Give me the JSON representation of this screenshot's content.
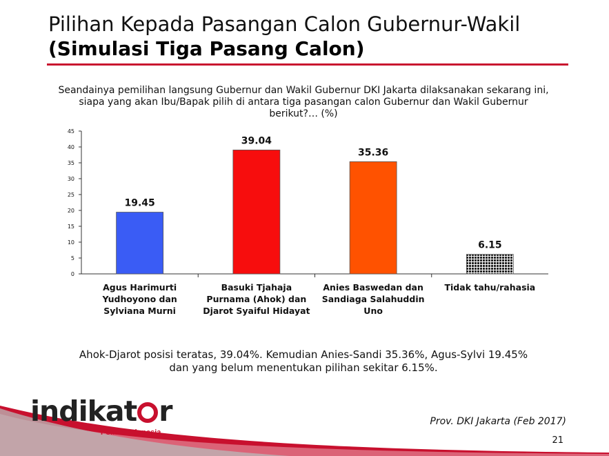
{
  "slide": {
    "title_line1": "Pilihan Kepada Pasangan Calon Gubernur-Wakil",
    "title_line2": "(Simulasi Tiga Pasang Calon)",
    "question": "Seandainya pemilihan langsung Gubernur dan Wakil Gubernur DKI Jakarta dilaksanakan sekarang ini, siapa yang akan Ibu/Bapak pilih di antara tiga pasangan calon Gubernur dan Wakil Gubernur berikut?… (%)",
    "summary_line1": "Ahok-Djarot posisi teratas, 39.04%. Kemudian Anies-Sandi 35.36%, Agus-Sylvi 19.45%",
    "summary_line2": "dan yang belum menentukan pilihan sekitar 6.15%.",
    "source": "Prov. DKI Jakarta (Feb 2017)",
    "page_number": "21"
  },
  "logo": {
    "text_before": "indikat",
    "text_after": "r",
    "subtitle": "Politik Indonesia"
  },
  "chart_data": {
    "type": "bar",
    "categories": [
      [
        "Agus Harimurti",
        "Yudhoyono dan",
        "Sylviana Murni"
      ],
      [
        "Basuki Tjahaja",
        "Purnama (Ahok) dan",
        "Djarot Syaiful Hidayat"
      ],
      [
        "Anies Baswedan dan",
        "Sandiaga Salahuddin",
        "Uno"
      ],
      [
        "Tidak tahu/rahasia"
      ]
    ],
    "values": [
      19.45,
      39.04,
      35.36,
      6.15
    ],
    "value_labels": [
      "19.45",
      "39.04",
      "35.36",
      "6.15"
    ],
    "colors": [
      "#3a5cf5",
      "#f70d0d",
      "#ff5200",
      "checkered"
    ],
    "ylim": [
      0,
      45
    ],
    "yticks": [
      0,
      5,
      10,
      15,
      20,
      25,
      30,
      35,
      40,
      45
    ],
    "grid": false
  },
  "colors": {
    "accent": "#c8102e"
  }
}
